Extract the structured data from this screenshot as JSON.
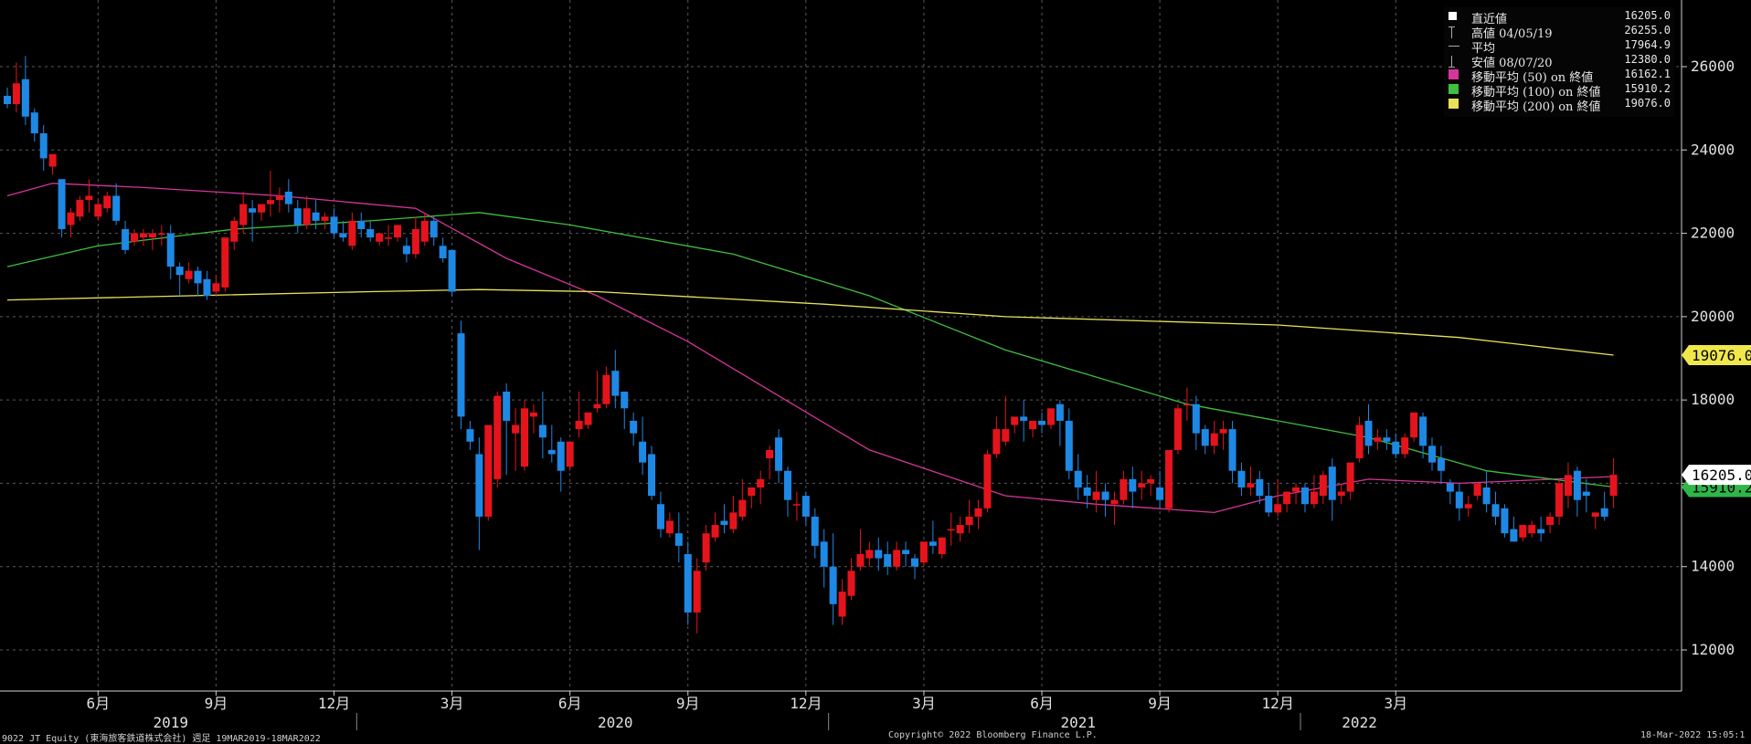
{
  "chart_data": {
    "type": "candlestick",
    "y_axis_ticks": [
      "12000",
      "14000",
      "16000",
      "18000",
      "20000",
      "22000",
      "24000",
      "26000"
    ],
    "ylim": [
      11300,
      27000
    ],
    "grid": true,
    "x_month_labels": [
      {
        "label": "6月",
        "week": 10
      },
      {
        "label": "9月",
        "week": 23
      },
      {
        "label": "12月",
        "week": 36
      },
      {
        "label": "3月",
        "week": 49
      },
      {
        "label": "6月",
        "week": 62
      },
      {
        "label": "9月",
        "week": 75
      },
      {
        "label": "12月",
        "week": 88
      },
      {
        "label": "3月",
        "week": 101
      },
      {
        "label": "6月",
        "week": 114
      },
      {
        "label": "9月",
        "week": 127
      },
      {
        "label": "12月",
        "week": 140
      },
      {
        "label": "3月",
        "week": 153
      }
    ],
    "x_year_labels": [
      {
        "label": "2019",
        "week": 18
      },
      {
        "label": "2020",
        "week": 67
      },
      {
        "label": "2021",
        "week": 118
      },
      {
        "label": "2022",
        "week": 149
      }
    ],
    "year_separators": [
      38.5,
      90.5,
      142.5
    ],
    "candles": [
      [
        25300,
        25500,
        25100,
        25000
      ],
      [
        25100,
        26100,
        25600,
        24900
      ],
      [
        25700,
        26255,
        24800,
        24600
      ],
      [
        24900,
        25000,
        24400,
        24200
      ],
      [
        24400,
        24600,
        23800,
        23500
      ],
      [
        23600,
        23800,
        23900,
        23400
      ],
      [
        23300,
        23300,
        22100,
        21900
      ],
      [
        22200,
        22600,
        22500,
        21900
      ],
      [
        22400,
        22900,
        22800,
        22300
      ],
      [
        22800,
        23300,
        22900,
        22500
      ],
      [
        22400,
        22800,
        22700,
        22300
      ],
      [
        22600,
        23000,
        22900,
        22500
      ],
      [
        22900,
        23200,
        22300,
        22200
      ],
      [
        22100,
        22300,
        21600,
        21500
      ],
      [
        21800,
        22100,
        22000,
        21700
      ],
      [
        21900,
        22100,
        22000,
        21700
      ],
      [
        21900,
        22100,
        22000,
        21600
      ],
      [
        22000,
        22200,
        22000,
        21700
      ],
      [
        22000,
        22200,
        21200,
        20900
      ],
      [
        21200,
        21300,
        21000,
        20500
      ],
      [
        20900,
        21300,
        21100,
        20800
      ],
      [
        21100,
        21200,
        20800,
        20500
      ],
      [
        20900,
        21100,
        20500,
        20400
      ],
      [
        20600,
        21000,
        20800,
        20500
      ],
      [
        20700,
        21600,
        21900,
        20600
      ],
      [
        21800,
        22400,
        22300,
        21600
      ],
      [
        22200,
        23000,
        22700,
        22000
      ],
      [
        22600,
        22800,
        22500,
        21800
      ],
      [
        22500,
        22700,
        22700,
        22300
      ],
      [
        22700,
        23500,
        22800,
        22400
      ],
      [
        22800,
        23100,
        22900,
        22500
      ],
      [
        23000,
        23300,
        22700,
        22500
      ],
      [
        22600,
        22800,
        22200,
        22000
      ],
      [
        22200,
        22900,
        22600,
        22100
      ],
      [
        22500,
        22800,
        22300,
        22100
      ],
      [
        22300,
        22500,
        22400,
        22100
      ],
      [
        22400,
        22600,
        22000,
        21900
      ],
      [
        22000,
        22300,
        21900,
        21800
      ],
      [
        21700,
        22500,
        22300,
        21600
      ],
      [
        22300,
        22500,
        22100,
        21900
      ],
      [
        22100,
        22300,
        21900,
        21800
      ],
      [
        21800,
        22000,
        22000,
        21700
      ],
      [
        21900,
        22200,
        21900,
        21700
      ],
      [
        21900,
        22100,
        22200,
        21800
      ],
      [
        21700,
        21900,
        21500,
        21300
      ],
      [
        21500,
        22400,
        22100,
        21400
      ],
      [
        21800,
        22500,
        22300,
        21700
      ],
      [
        22300,
        22400,
        21900,
        21700
      ],
      [
        21700,
        21900,
        21400,
        21300
      ],
      [
        21600,
        21600,
        20600,
        20500
      ],
      [
        19600,
        19900,
        17600,
        17300
      ],
      [
        17300,
        17500,
        17000,
        16800
      ],
      [
        16700,
        17100,
        15200,
        14400
      ],
      [
        15200,
        16500,
        17400,
        15100
      ],
      [
        16100,
        18200,
        18100,
        15900
      ],
      [
        18200,
        18400,
        17500,
        16200
      ],
      [
        17200,
        17800,
        17400,
        16300
      ],
      [
        16400,
        18000,
        17800,
        16300
      ],
      [
        17600,
        17900,
        17700,
        17200
      ],
      [
        17400,
        18200,
        17100,
        16600
      ],
      [
        16800,
        17400,
        16700,
        16500
      ],
      [
        17000,
        17100,
        16300,
        15800
      ],
      [
        16400,
        17000,
        17000,
        16300
      ],
      [
        17300,
        18200,
        17500,
        17100
      ],
      [
        17400,
        17600,
        17700,
        17300
      ],
      [
        17800,
        18700,
        17900,
        17700
      ],
      [
        17900,
        18800,
        18600,
        17800
      ],
      [
        18700,
        19200,
        18100,
        17800
      ],
      [
        18200,
        18200,
        17800,
        17300
      ],
      [
        17500,
        17700,
        17200,
        16900
      ],
      [
        17000,
        17600,
        16500,
        16200
      ],
      [
        16700,
        16900,
        15700,
        15600
      ],
      [
        15500,
        15800,
        14900,
        14700
      ],
      [
        14800,
        15300,
        15100,
        14700
      ],
      [
        14800,
        15300,
        14500,
        14100
      ],
      [
        14300,
        14600,
        12900,
        12600
      ],
      [
        12900,
        14200,
        13900,
        12400
      ],
      [
        14100,
        15000,
        14800,
        13900
      ],
      [
        14700,
        15300,
        15000,
        14600
      ],
      [
        15100,
        15500,
        15000,
        14800
      ],
      [
        14900,
        15700,
        15300,
        14800
      ],
      [
        15200,
        16100,
        15600,
        15100
      ],
      [
        15700,
        15900,
        15900,
        15400
      ],
      [
        15900,
        16300,
        16100,
        15500
      ],
      [
        16600,
        16900,
        16800,
        16100
      ],
      [
        17100,
        17300,
        16300,
        16000
      ],
      [
        16300,
        16400,
        15600,
        15200
      ],
      [
        15500,
        15800,
        15500,
        15100
      ],
      [
        15700,
        15800,
        15200,
        15000
      ],
      [
        15200,
        15400,
        14500,
        14200
      ],
      [
        14600,
        14900,
        14000,
        13500
      ],
      [
        14000,
        14800,
        13100,
        12600
      ],
      [
        12800,
        13700,
        13400,
        12600
      ],
      [
        13300,
        14200,
        13900,
        13200
      ],
      [
        14000,
        14900,
        14300,
        13900
      ],
      [
        14200,
        14600,
        14400,
        14000
      ],
      [
        14400,
        14700,
        14200,
        13900
      ],
      [
        14300,
        14600,
        14000,
        13800
      ],
      [
        14000,
        14600,
        14400,
        13900
      ],
      [
        14400,
        14600,
        14300,
        14000
      ],
      [
        14200,
        14300,
        14000,
        13700
      ],
      [
        14100,
        14500,
        14600,
        14000
      ],
      [
        14600,
        15100,
        14500,
        14300
      ],
      [
        14300,
        14700,
        14700,
        14200
      ],
      [
        14900,
        15300,
        14900,
        14500
      ],
      [
        14800,
        15200,
        15000,
        14600
      ],
      [
        15000,
        15600,
        15200,
        14800
      ],
      [
        15200,
        15600,
        15400,
        14900
      ],
      [
        15400,
        16800,
        16700,
        15300
      ],
      [
        16700,
        17600,
        17300,
        16600
      ],
      [
        17000,
        18100,
        17300,
        16900
      ],
      [
        17400,
        17600,
        17600,
        17200
      ],
      [
        17600,
        18000,
        17500,
        17000
      ],
      [
        17300,
        17500,
        17500,
        17100
      ],
      [
        17500,
        17700,
        17400,
        17200
      ],
      [
        17400,
        17600,
        17800,
        17300
      ],
      [
        17900,
        18000,
        17500,
        16900
      ],
      [
        17500,
        17800,
        16300,
        16100
      ],
      [
        16300,
        16700,
        15900,
        15600
      ],
      [
        15900,
        16200,
        15700,
        15400
      ],
      [
        15600,
        16300,
        15800,
        15300
      ],
      [
        15800,
        16000,
        15600,
        15200
      ],
      [
        15500,
        15800,
        15600,
        15000
      ],
      [
        15600,
        16300,
        16100,
        15500
      ],
      [
        16100,
        16400,
        15800,
        15400
      ],
      [
        15900,
        16300,
        16000,
        15600
      ],
      [
        16000,
        16200,
        16100,
        15700
      ],
      [
        15900,
        16300,
        15600,
        15400
      ],
      [
        15400,
        15700,
        16800,
        15300
      ],
      [
        16800,
        17900,
        17800,
        16700
      ],
      [
        17900,
        18300,
        17900,
        17500
      ],
      [
        17900,
        18100,
        17200,
        16800
      ],
      [
        17300,
        17400,
        16900,
        16700
      ],
      [
        16900,
        17500,
        17200,
        16700
      ],
      [
        17200,
        17500,
        17300,
        16800
      ],
      [
        17300,
        17500,
        16300,
        16000
      ],
      [
        16300,
        16500,
        15900,
        15700
      ],
      [
        15900,
        16400,
        16000,
        15700
      ],
      [
        16100,
        16300,
        15700,
        15500
      ],
      [
        15700,
        16000,
        15300,
        15200
      ],
      [
        15300,
        16100,
        15500,
        15200
      ],
      [
        15500,
        15700,
        15800,
        15300
      ],
      [
        15800,
        16000,
        15900,
        15500
      ],
      [
        15900,
        16000,
        15500,
        15300
      ],
      [
        15500,
        16200,
        15800,
        15400
      ],
      [
        15700,
        16300,
        16200,
        15500
      ],
      [
        16400,
        16600,
        15600,
        15100
      ],
      [
        15700,
        16000,
        15800,
        15500
      ],
      [
        15800,
        16500,
        16500,
        15600
      ],
      [
        16600,
        17600,
        17400,
        16500
      ],
      [
        17500,
        17900,
        16900,
        16700
      ],
      [
        17000,
        17300,
        17100,
        16800
      ],
      [
        17100,
        17300,
        17000,
        16800
      ],
      [
        17000,
        17200,
        16700,
        16600
      ],
      [
        16700,
        17200,
        17100,
        16600
      ],
      [
        17100,
        17400,
        17700,
        17000
      ],
      [
        17600,
        17700,
        16900,
        16600
      ],
      [
        16900,
        17100,
        16500,
        16300
      ],
      [
        16600,
        16900,
        16300,
        16000
      ],
      [
        16000,
        16100,
        15800,
        15500
      ],
      [
        15800,
        16000,
        15400,
        15100
      ],
      [
        15400,
        15700,
        15500,
        15200
      ],
      [
        15700,
        16000,
        16000,
        15600
      ],
      [
        15900,
        16300,
        15500,
        15300
      ],
      [
        15500,
        15800,
        15200,
        15000
      ],
      [
        15400,
        15500,
        14800,
        14700
      ],
      [
        14900,
        15200,
        14600,
        14600
      ],
      [
        14700,
        15000,
        15000,
        14600
      ],
      [
        14800,
        15100,
        15000,
        14700
      ],
      [
        14900,
        15200,
        14800,
        14600
      ],
      [
        15000,
        15300,
        15200,
        14800
      ],
      [
        15200,
        16100,
        16000,
        15000
      ],
      [
        15700,
        16500,
        16200,
        15400
      ],
      [
        16300,
        16400,
        15600,
        15200
      ],
      [
        15800,
        16100,
        15700,
        15300
      ],
      [
        15200,
        15300,
        15300,
        14900
      ],
      [
        15400,
        15800,
        15200,
        15100
      ],
      [
        15700,
        16600,
        16205,
        15400
      ]
    ],
    "series": [
      {
        "name": "移動平均 (50) on 終値",
        "color": "#d6359a",
        "points": [
          [
            0,
            22900
          ],
          [
            5,
            23200
          ],
          [
            15,
            23100
          ],
          [
            30,
            22900
          ],
          [
            45,
            22600
          ],
          [
            50,
            22000
          ],
          [
            55,
            21400
          ],
          [
            65,
            20500
          ],
          [
            75,
            19400
          ],
          [
            85,
            18100
          ],
          [
            95,
            16800
          ],
          [
            110,
            15700
          ],
          [
            120,
            15500
          ],
          [
            133,
            15300
          ],
          [
            140,
            15700
          ],
          [
            150,
            16100
          ],
          [
            160,
            16000
          ],
          [
            177,
            16162.1
          ]
        ]
      },
      {
        "name": "移動平均 (100) on 終値",
        "color": "#3fbf3f",
        "points": [
          [
            0,
            21200
          ],
          [
            10,
            21700
          ],
          [
            25,
            22100
          ],
          [
            40,
            22300
          ],
          [
            52,
            22500
          ],
          [
            62,
            22200
          ],
          [
            80,
            21500
          ],
          [
            95,
            20500
          ],
          [
            110,
            19200
          ],
          [
            130,
            17900
          ],
          [
            150,
            17100
          ],
          [
            163,
            16300
          ],
          [
            177,
            15910.2
          ]
        ]
      },
      {
        "name": "移動平均 (200) on 終値",
        "color": "#e8e25a",
        "points": [
          [
            0,
            20400
          ],
          [
            20,
            20500
          ],
          [
            40,
            20600
          ],
          [
            52,
            20650
          ],
          [
            65,
            20600
          ],
          [
            90,
            20300
          ],
          [
            110,
            20000
          ],
          [
            140,
            19800
          ],
          [
            160,
            19500
          ],
          [
            177,
            19076
          ]
        ]
      }
    ],
    "price_tags": [
      {
        "value": "19076.0",
        "y": 19076,
        "bg": "#f0e84a",
        "fg": "#000"
      },
      {
        "value": "15910.2",
        "y": 15910.2,
        "bg": "#2fb548",
        "fg": "#000"
      },
      {
        "value": "16205.0",
        "y": 16205,
        "bg": "#ffffff",
        "fg": "#000"
      }
    ],
    "candle_up_color": "#e5141c",
    "candle_down_color": "#1e88e5"
  },
  "legend": {
    "rows": [
      {
        "label": "直近値",
        "value": "16205.0",
        "symbol": "box",
        "color": "#ffffff"
      },
      {
        "label": "高値 04/05/19",
        "value": "26255.0",
        "symbol": "tee",
        "color": "#aaaaaa"
      },
      {
        "label": "平均",
        "value": "17964.9",
        "symbol": "dash",
        "color": "#aaaaaa"
      },
      {
        "label": "安値 08/07/20",
        "value": "12380.0",
        "symbol": "inv-tee",
        "color": "#aaaaaa"
      },
      {
        "label": "移動平均 (50) on 終値",
        "value": "16162.1",
        "symbol": "swatch",
        "color": "#d6359a"
      },
      {
        "label": "移動平均 (100) on 終値",
        "value": "15910.2",
        "symbol": "swatch",
        "color": "#3fbf3f"
      },
      {
        "label": "移動平均 (200) on 終値",
        "value": "19076.0",
        "symbol": "swatch",
        "color": "#e8e25a"
      }
    ]
  },
  "footer": {
    "left": "9022 JT Equity (東海旅客鉄道株式会社) 週足 19MAR2019-18MAR2022",
    "center": "Copyright© 2022 Bloomberg Finance L.P.",
    "right": "18-Mar-2022 15:05:1"
  }
}
